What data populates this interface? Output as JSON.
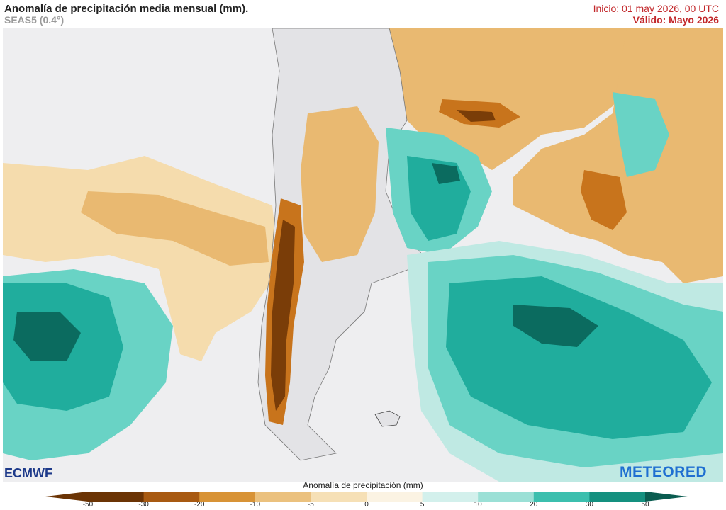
{
  "header": {
    "title": "Anomalía de precipitación media mensual (mm).",
    "model": "SEAS5 (0.4°)",
    "init": "Inicio: 01 may 2026, 00 UTC",
    "valid": "Válido: Mayo 2026"
  },
  "map": {
    "region": "South America (southern cone)",
    "variable": "precipitation anomaly (mm)",
    "colors": {
      "ocean_neutral": "#eeeef0",
      "land_neutral": "#e3e3e6",
      "dry_strong": "#7a3d08",
      "dry_mid": "#c8741c",
      "dry_light": "#e9b971",
      "dry_faint": "#f5dcad",
      "wet_faint": "#bfe9e3",
      "wet_light": "#69d3c5",
      "wet_mid": "#20ad9d",
      "wet_strong": "#0b6b5f"
    }
  },
  "logos": {
    "left": "ECMWF",
    "right": "METEORED"
  },
  "colorbar": {
    "label": "Anomalía de precipitación (mm)",
    "ticks": [
      "-50",
      "-30",
      "-20",
      "-10",
      "-5",
      "0",
      "5",
      "10",
      "20",
      "30",
      "50"
    ],
    "colors": [
      "#6b3405",
      "#a85a12",
      "#d89336",
      "#ebc17e",
      "#f6e0b6",
      "#fbf3e3",
      "#d3f0ec",
      "#9be0d6",
      "#3cbfae",
      "#14907f",
      "#0a5c50"
    ]
  }
}
